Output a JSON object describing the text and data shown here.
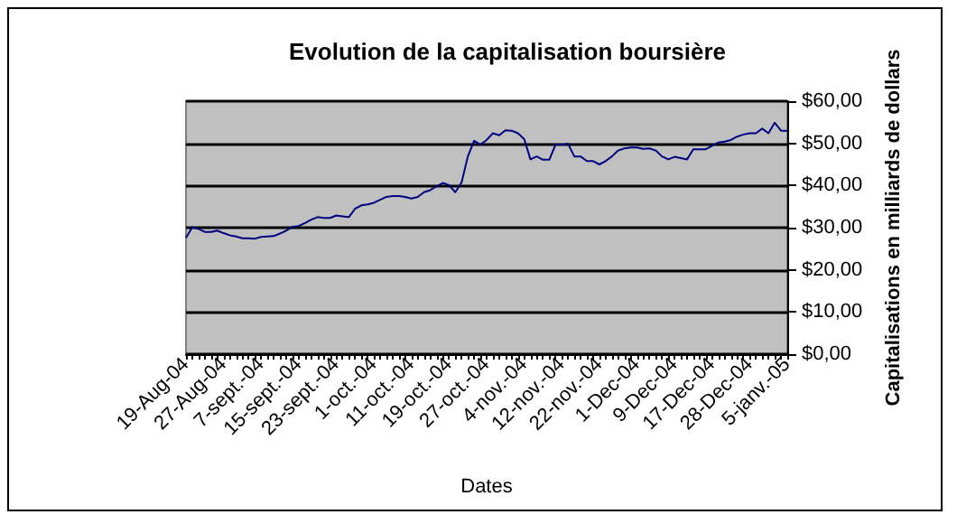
{
  "chart_data": {
    "type": "line",
    "title": "Evolution de la capitalisation boursière",
    "xlabel": "Dates",
    "ylabel": "Capitalisations en milliards de dollars",
    "categories": [
      "19-Aug-04",
      null,
      null,
      null,
      null,
      null,
      "27-Aug-04",
      null,
      null,
      null,
      null,
      null,
      "7-sept.-04",
      null,
      null,
      null,
      null,
      null,
      "15-sept.-04",
      null,
      null,
      null,
      null,
      null,
      "23-sept.-04",
      null,
      null,
      null,
      null,
      null,
      "1-oct.-04",
      null,
      null,
      null,
      null,
      null,
      "11-oct.-04",
      null,
      null,
      null,
      null,
      null,
      "19-oct.-04",
      null,
      null,
      null,
      null,
      null,
      "27-oct.-04",
      null,
      null,
      null,
      null,
      null,
      "4-nov.-04",
      null,
      null,
      null,
      null,
      null,
      "12-nov.-04",
      null,
      null,
      null,
      null,
      null,
      "22-nov.-04",
      null,
      null,
      null,
      null,
      null,
      "1-Dec-04",
      null,
      null,
      null,
      null,
      null,
      "9-Dec-04",
      null,
      null,
      null,
      null,
      null,
      "17-Dec-04",
      null,
      null,
      null,
      null,
      null,
      "28-Dec-04",
      null,
      null,
      null,
      null,
      null,
      "5-janv.-05"
    ],
    "series": [
      {
        "color": "#000080",
        "values": [
          27.6,
          30.1,
          29.7,
          29.0,
          29.0,
          29.3,
          28.7,
          28.2,
          27.9,
          27.5,
          27.5,
          27.4,
          27.8,
          27.9,
          28.0,
          28.6,
          29.3,
          30.2,
          30.4,
          31.1,
          31.9,
          32.5,
          32.3,
          32.3,
          32.9,
          32.7,
          32.5,
          34.5,
          35.3,
          35.5,
          35.9,
          36.6,
          37.3,
          37.5,
          37.5,
          37.3,
          36.9,
          37.3,
          38.4,
          38.9,
          39.8,
          40.6,
          40.1,
          38.4,
          40.7,
          46.9,
          50.6,
          49.7,
          50.8,
          52.4,
          51.9,
          53.1,
          53.0,
          52.4,
          51.0,
          46.2,
          46.9,
          46.1,
          46.1,
          49.7,
          49.7,
          49.9,
          46.9,
          46.9,
          45.8,
          45.8,
          45.0,
          45.8,
          46.9,
          48.3,
          48.8,
          49.0,
          49.0,
          48.7,
          48.8,
          48.3,
          46.9,
          46.2,
          46.8,
          46.5,
          46.2,
          48.6,
          48.6,
          48.6,
          49.4,
          50.2,
          50.4,
          50.8,
          51.6,
          52.1,
          52.4,
          52.4,
          53.5,
          52.4,
          54.9,
          53.0,
          53.0
        ]
      }
    ],
    "ylim": [
      0,
      60
    ],
    "yticks": [
      {
        "value": 0,
        "label": "$0,00"
      },
      {
        "value": 10,
        "label": "$10,00"
      },
      {
        "value": 20,
        "label": "$20,00"
      },
      {
        "value": 30,
        "label": "$30,00"
      },
      {
        "value": 40,
        "label": "$40,00"
      },
      {
        "value": 50,
        "label": "$50,00"
      },
      {
        "value": 60,
        "label": "$60,00"
      }
    ],
    "grid": "y",
    "marker": "none",
    "line_style": "solid"
  }
}
